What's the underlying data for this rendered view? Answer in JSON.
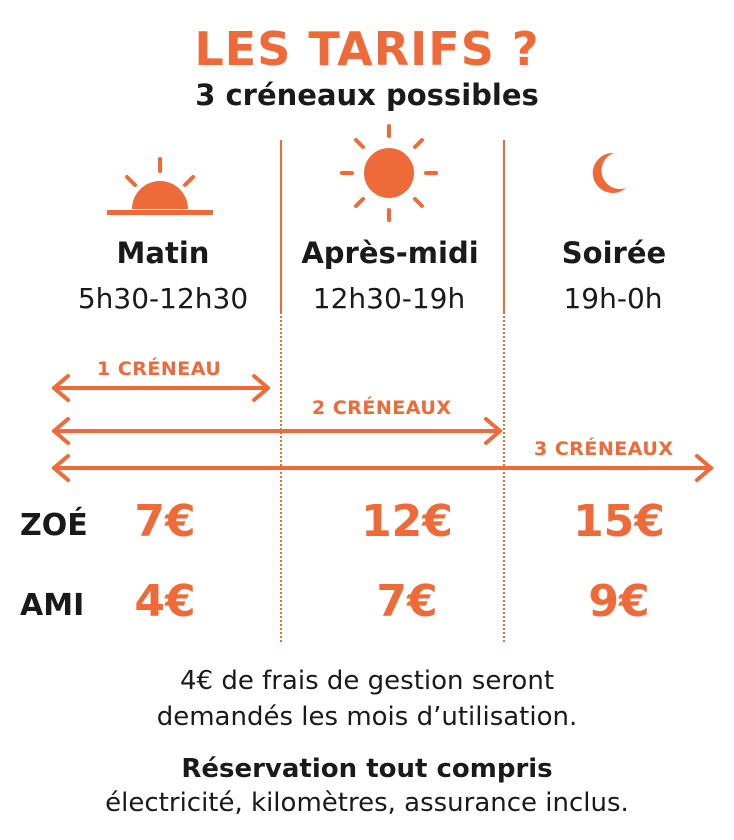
{
  "title": "LES TARIFS ?",
  "subtitle": "3 créneaux possibles",
  "slots": [
    {
      "name": "Matin",
      "hours": "5h30-12h30",
      "icon": "sunrise-icon"
    },
    {
      "name": "Après-midi",
      "hours": "12h30-19h",
      "icon": "sun-icon"
    },
    {
      "name": "Soirée",
      "hours": "19h-0h",
      "icon": "moon-icon"
    }
  ],
  "ranges": [
    {
      "label": "1 CRÉNEAU"
    },
    {
      "label": "2 CRÉNEAUX"
    },
    {
      "label": "3 CRÉNEAUX"
    }
  ],
  "prices": {
    "zoe": {
      "label": "ZOÉ",
      "values": [
        "7€",
        "12€",
        "15€"
      ]
    },
    "ami": {
      "label": "AMI",
      "values": [
        "4€",
        "7€",
        "9€"
      ]
    }
  },
  "footer": {
    "line1": "4€ de frais de gestion seront",
    "line2": "demandés les mois d’utilisation.",
    "line3": "Réservation tout compris",
    "line4": "électricité, kilomètres, assurance inclus."
  },
  "colors": {
    "accent": "#ee6a38",
    "text": "#1a1a1a"
  }
}
